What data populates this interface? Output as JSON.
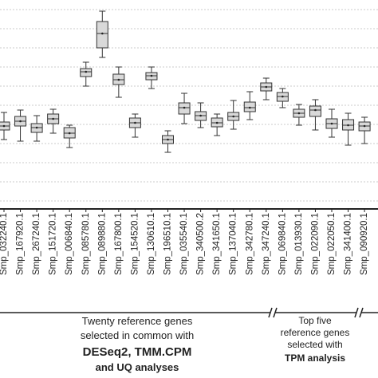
{
  "chart_data": {
    "type": "box",
    "categories": [
      "Smp_032240.1",
      "Smp_167920.1",
      "Smp_267240.1",
      "Smp_151720.1",
      "Smp_006840.1",
      "Smp_085780.1",
      "Smp_089880.1",
      "Smp_167800.1",
      "Smp_154520.1",
      "Smp_130610.1",
      "Smp_196510.1",
      "Smp_035540.1",
      "Smp_340500.2",
      "Smp_341650.1",
      "Smp_137040.1",
      "Smp_342780.1",
      "Smp_347240.1",
      "Smp_069840.1",
      "Smp_013930.1",
      "Smp_022090.1",
      "Smp_022050.1",
      "Smp_341400.1",
      "Smp_090920.1"
    ],
    "boxes": [
      {
        "whisker_low": 95,
        "q1": 107,
        "median": 112,
        "q3": 117,
        "whisker_high": 129
      },
      {
        "whisker_low": 93,
        "q1": 112,
        "median": 118,
        "q3": 124,
        "whisker_high": 132
      },
      {
        "whisker_low": 93,
        "q1": 104,
        "median": 110,
        "q3": 115,
        "whisker_high": 125
      },
      {
        "whisker_low": 103,
        "q1": 115,
        "median": 121,
        "q3": 127,
        "whisker_high": 133
      },
      {
        "whisker_low": 85,
        "q1": 97,
        "median": 103,
        "q3": 110,
        "whisker_high": 113
      },
      {
        "whisker_low": 162,
        "q1": 174,
        "median": 180,
        "q3": 184,
        "whisker_high": 192
      },
      {
        "whisker_low": 198,
        "q1": 210,
        "median": 228,
        "q3": 243,
        "whisker_high": 256
      },
      {
        "whisker_low": 148,
        "q1": 164,
        "median": 170,
        "q3": 177,
        "whisker_high": 186
      },
      {
        "whisker_low": 98,
        "q1": 110,
        "median": 116,
        "q3": 122,
        "whisker_high": 127
      },
      {
        "whisker_low": 159,
        "q1": 170,
        "median": 175,
        "q3": 179,
        "whisker_high": 186
      },
      {
        "whisker_low": 79,
        "q1": 90,
        "median": 95,
        "q3": 100,
        "whisker_high": 106
      },
      {
        "whisker_low": 115,
        "q1": 127,
        "median": 135,
        "q3": 141,
        "whisker_high": 153
      },
      {
        "whisker_low": 110,
        "q1": 119,
        "median": 125,
        "q3": 130,
        "whisker_high": 141
      },
      {
        "whisker_low": 100,
        "q1": 111,
        "median": 116,
        "q3": 122,
        "whisker_high": 127
      },
      {
        "whisker_low": 108,
        "q1": 119,
        "median": 124,
        "q3": 129,
        "whisker_high": 144
      },
      {
        "whisker_low": 120,
        "q1": 130,
        "median": 135,
        "q3": 142,
        "whisker_high": 155
      },
      {
        "whisker_low": 145,
        "q1": 156,
        "median": 161,
        "q3": 166,
        "whisker_high": 172
      },
      {
        "whisker_low": 135,
        "q1": 143,
        "median": 149,
        "q3": 154,
        "whisker_high": 159
      },
      {
        "whisker_low": 113,
        "q1": 123,
        "median": 128,
        "q3": 133,
        "whisker_high": 139
      },
      {
        "whisker_low": 107,
        "q1": 124,
        "median": 132,
        "q3": 137,
        "whisker_high": 145
      },
      {
        "whisker_low": 98,
        "q1": 109,
        "median": 115,
        "q3": 121,
        "whisker_high": 133
      },
      {
        "whisker_low": 88,
        "q1": 107,
        "median": 113,
        "q3": 120,
        "whisker_high": 128
      },
      {
        "whisker_low": 90,
        "q1": 106,
        "median": 112,
        "q3": 117,
        "whisker_high": 123
      }
    ],
    "color": "#d9d9d9",
    "ylim": [
      0,
      270
    ],
    "yticks": [
      18,
      42,
      66,
      90,
      114,
      138,
      162,
      186,
      210,
      234,
      258
    ],
    "grid": true,
    "groups": [
      {
        "lines": [
          "Twenty reference genes",
          "selected in common with",
          "DESeq2, TMM.CPM",
          "and UQ analyses"
        ]
      },
      {
        "lines": [
          "Top five",
          "reference genes",
          "selected with",
          "TPM analysis"
        ]
      }
    ]
  }
}
